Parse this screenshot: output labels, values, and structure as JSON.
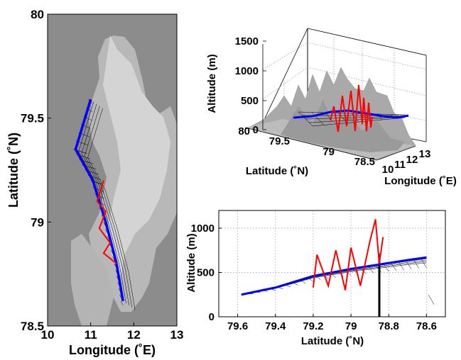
{
  "chart_data": [
    {
      "type": "map",
      "xlabel": "Longitude (˚E)",
      "ylabel": "Latitude (˚N)",
      "xlim": [
        10,
        13
      ],
      "ylim": [
        78.5,
        80
      ],
      "x_ticks": [
        "10",
        "11",
        "12",
        "13"
      ],
      "y_ticks": [
        "78.5",
        "79",
        "79.5",
        "80"
      ],
      "grid": false,
      "series": [
        {
          "style": "blue-track",
          "color": "#0000ff",
          "points": [
            [
              11.0,
              79.59
            ],
            [
              10.65,
              79.35
            ],
            [
              11.05,
              79.2
            ],
            [
              11.35,
              79.0
            ],
            [
              11.6,
              78.8
            ],
            [
              11.75,
              78.62
            ]
          ]
        },
        {
          "style": "red-track",
          "color": "#ff0000",
          "points": [
            [
              11.3,
              79.2
            ],
            [
              11.15,
              79.1
            ],
            [
              11.35,
              79.05
            ],
            [
              11.2,
              78.97
            ],
            [
              11.45,
              78.9
            ],
            [
              11.3,
              78.85
            ],
            [
              11.6,
              78.8
            ]
          ]
        }
      ]
    },
    {
      "type": "surface-3d",
      "xlabel": "Longitude (˚E)",
      "ylabel": "Latitude (˚N)",
      "zlabel": "Altitude (m)",
      "x_ticks": [
        "10",
        "11",
        "12",
        "13"
      ],
      "y_ticks": [
        "78.5",
        "79",
        "79.5",
        "80"
      ],
      "z_ticks": [
        "0",
        "500",
        "1000",
        "1500"
      ],
      "zlim": [
        0,
        1500
      ],
      "grid": true
    },
    {
      "type": "line",
      "xlabel": "Latitude (˚N)",
      "ylabel": "Altitude (m)",
      "xlim": [
        79.7,
        78.5
      ],
      "ylim": [
        0,
        1200
      ],
      "x_ticks": [
        "79.6",
        "79.4",
        "79.2",
        "79",
        "78.8",
        "78.6"
      ],
      "y_ticks": [
        "0",
        "500",
        "1000"
      ],
      "x_reversed": true,
      "grid": true,
      "series": [
        {
          "style": "blue-track",
          "color": "#0000ff",
          "x": [
            79.58,
            79.4,
            79.2,
            79.0,
            78.85,
            78.7,
            78.6
          ],
          "y": [
            250,
            330,
            460,
            540,
            590,
            640,
            670
          ]
        },
        {
          "style": "red-track",
          "color": "#ff0000",
          "x": [
            79.2,
            79.18,
            79.12,
            79.08,
            79.03,
            79.0,
            78.95,
            78.9,
            78.87,
            78.85,
            78.83
          ],
          "y": [
            330,
            700,
            350,
            750,
            300,
            780,
            350,
            850,
            1100,
            600,
            900
          ]
        }
      ]
    }
  ]
}
